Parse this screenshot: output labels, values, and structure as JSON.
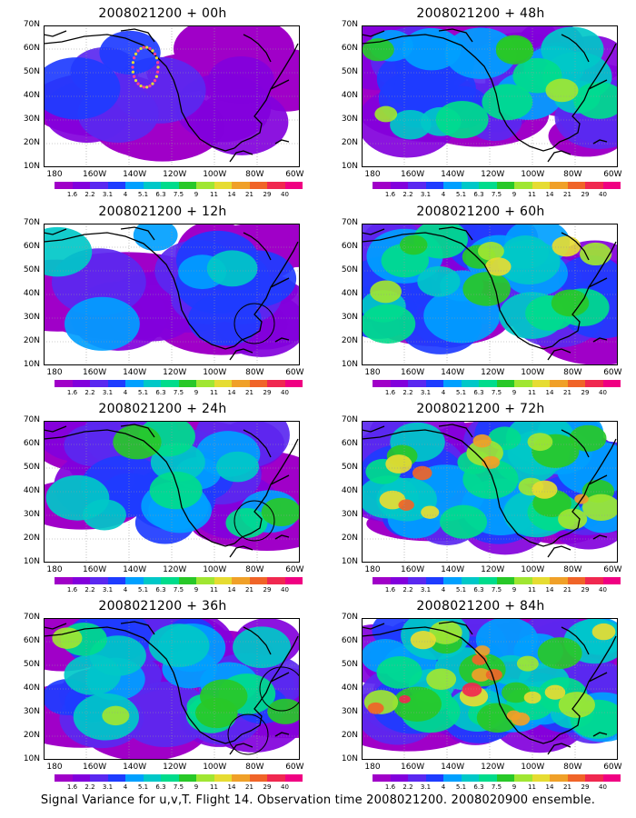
{
  "panels": [
    {
      "title": "2008021200 + 00h",
      "lead": "00h",
      "circles": 0,
      "dots": true,
      "level": 0.6
    },
    {
      "title": "2008021200 + 48h",
      "lead": "48h",
      "circles": 0,
      "dots": false,
      "level": 1.6
    },
    {
      "title": "2008021200 + 12h",
      "lead": "12h",
      "circles": 1,
      "dots": false,
      "level": 1.0
    },
    {
      "title": "2008021200 + 60h",
      "lead": "60h",
      "circles": 0,
      "dots": false,
      "level": 1.8
    },
    {
      "title": "2008021200 + 24h",
      "lead": "24h",
      "circles": 1,
      "dots": false,
      "level": 1.3
    },
    {
      "title": "2008021200 + 72h",
      "lead": "72h",
      "circles": 0,
      "dots": false,
      "level": 2.1
    },
    {
      "title": "2008021200 + 36h",
      "lead": "36h",
      "circles": 2,
      "dots": false,
      "level": 1.5
    },
    {
      "title": "2008021200 + 84h",
      "lead": "84h",
      "circles": 0,
      "dots": false,
      "level": 2.3
    }
  ],
  "y_ticks": [
    "70N",
    "60N",
    "50N",
    "40N",
    "30N",
    "20N",
    "10N"
  ],
  "x_ticks": [
    "180",
    "160W",
    "140W",
    "120W",
    "100W",
    "80W",
    "60W"
  ],
  "colorbar": {
    "labels": [
      "1.6",
      "2.2",
      "3.1",
      "4",
      "5.1",
      "6.3",
      "7.5",
      "9",
      "11",
      "14",
      "21",
      "29",
      "40"
    ],
    "colors": [
      "#a000c8",
      "#8200dc",
      "#5a28f0",
      "#1e3cff",
      "#00a0ff",
      "#00c8c8",
      "#00dc8c",
      "#28c828",
      "#a0e632",
      "#e6dc32",
      "#f0a028",
      "#f06428",
      "#f02850",
      "#f00082"
    ]
  },
  "caption": "Signal Variance for u,v,T. Flight 14. Observation time 2008021200. 2008020900 ensemble."
}
